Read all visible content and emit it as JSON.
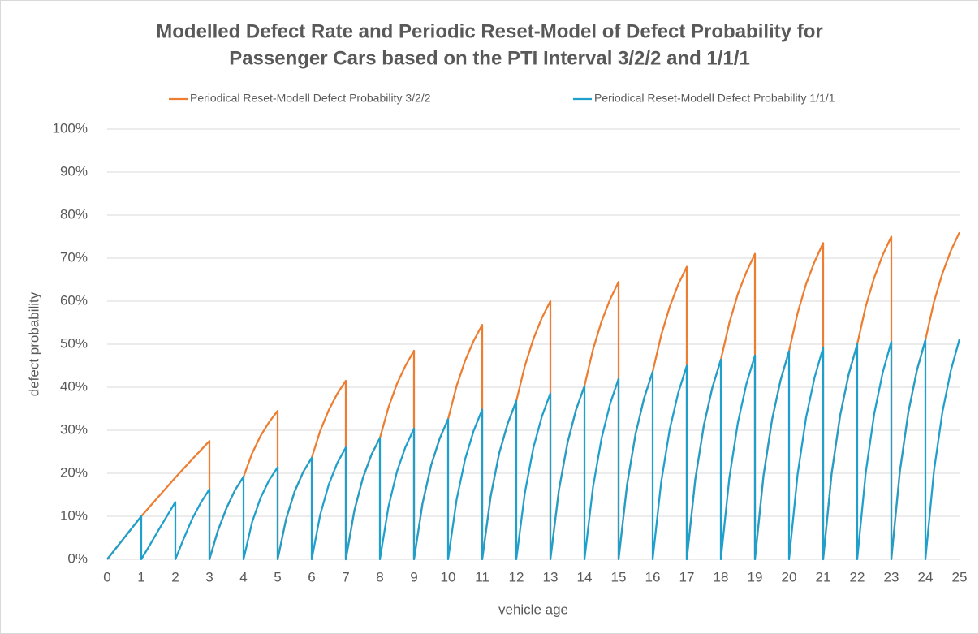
{
  "chart_data": {
    "type": "line",
    "title": [
      "Modelled Defect Rate and Periodic Reset-Model of Defect Probability for",
      "Passenger Cars based on the PTI Interval 3/2/2 and 1/1/1"
    ],
    "x_label": "vehicle age",
    "y_label": "defect probability",
    "xlim": [
      0,
      25
    ],
    "ylim": [
      0,
      100
    ],
    "xticks": [
      0,
      1,
      2,
      3,
      4,
      5,
      6,
      7,
      8,
      9,
      10,
      11,
      12,
      13,
      14,
      15,
      16,
      17,
      18,
      19,
      20,
      21,
      22,
      23,
      24,
      25
    ],
    "yticks": [
      {
        "value": 0,
        "label": "0%"
      },
      {
        "value": 10,
        "label": "10%"
      },
      {
        "value": 20,
        "label": "20%"
      },
      {
        "value": 30,
        "label": "30%"
      },
      {
        "value": 40,
        "label": "40%"
      },
      {
        "value": 50,
        "label": "50%"
      },
      {
        "value": 60,
        "label": "60%"
      },
      {
        "value": 70,
        "label": "70%"
      },
      {
        "value": 80,
        "label": "80%"
      },
      {
        "value": 90,
        "label": "90%"
      },
      {
        "value": 100,
        "label": "100%"
      }
    ],
    "grid": true,
    "legend": "top",
    "series": [
      {
        "name": "Periodical Reset-Modell Defect Probability 3/2/2",
        "color": "#ED7D31",
        "x": [
          0,
          0.5,
          1,
          1.5,
          2,
          2.5,
          3,
          3,
          3.25,
          3.5,
          3.75,
          4,
          4.25,
          4.5,
          4.75,
          5,
          5,
          5.25,
          5.5,
          5.75,
          6,
          6.25,
          6.5,
          6.75,
          7,
          7,
          7.25,
          7.5,
          7.75,
          8,
          8.25,
          8.5,
          8.75,
          9,
          9,
          9.25,
          9.5,
          9.75,
          10,
          10.25,
          10.5,
          10.75,
          11,
          11,
          11.25,
          11.5,
          11.75,
          12,
          12.25,
          12.5,
          12.75,
          13,
          13,
          13.25,
          13.5,
          13.75,
          14,
          14.25,
          14.5,
          14.75,
          15,
          15,
          15.25,
          15.5,
          15.75,
          16,
          16.25,
          16.5,
          16.75,
          17,
          17,
          17.25,
          17.5,
          17.75,
          18,
          18.25,
          18.5,
          18.75,
          19,
          19,
          19.25,
          19.5,
          19.75,
          20,
          20.25,
          20.5,
          20.75,
          21,
          21,
          21.25,
          21.5,
          21.75,
          22,
          22.25,
          22.5,
          22.75,
          23,
          23,
          23.25,
          23.5,
          23.75,
          24,
          24.25,
          24.5,
          24.75,
          25
        ],
        "values": [
          0,
          5,
          10,
          14.5,
          19,
          23.3,
          27.5,
          0,
          6.7,
          11.9,
          16.1,
          19.2,
          24.6,
          28.7,
          31.9,
          34.5,
          0,
          9.4,
          15.8,
          20.3,
          23.6,
          29.9,
          34.7,
          38.5,
          41.5,
          0,
          11.3,
          18.9,
          24.3,
          28.2,
          35.3,
          40.8,
          45.0,
          48.5,
          0,
          13,
          21.8,
          28,
          32.6,
          40.3,
          46.2,
          50.8,
          54.5,
          0,
          14.7,
          24.7,
          31.6,
          36.8,
          44.9,
          51.2,
          56.1,
          60,
          0,
          16.1,
          27,
          34.7,
          40.3,
          48.8,
          55.3,
          60.4,
          64.5,
          0,
          17.4,
          29.2,
          37.5,
          43.6,
          52.1,
          58.7,
          63.9,
          68,
          0,
          18.6,
          31.1,
          39.9,
          46.4,
          55,
          61.7,
          66.8,
          71,
          0,
          19.4,
          32.4,
          41.6,
          48.4,
          57.2,
          64,
          69.2,
          73.5,
          0,
          20,
          33.5,
          43,
          50,
          58.8,
          65.5,
          70.8,
          75,
          0,
          20.4,
          34.2,
          43.9,
          51,
          59.8,
          66.5,
          71.8,
          76
        ]
      },
      {
        "name": "Periodical Reset-Modell Defect Probability 1/1/1",
        "color": "#1F9FCB",
        "x": [
          0,
          0.25,
          0.5,
          0.75,
          1,
          1,
          1.25,
          1.5,
          1.75,
          2,
          2,
          2.25,
          2.5,
          2.75,
          3,
          3,
          3.25,
          3.5,
          3.75,
          4,
          4,
          4.25,
          4.5,
          4.75,
          5,
          5,
          5.25,
          5.5,
          5.75,
          6,
          6,
          6.25,
          6.5,
          6.75,
          7,
          7,
          7.25,
          7.5,
          7.75,
          8,
          8,
          8.25,
          8.5,
          8.75,
          9,
          9,
          9.25,
          9.5,
          9.75,
          10,
          10,
          10.25,
          10.5,
          10.75,
          11,
          11,
          11.25,
          11.5,
          11.75,
          12,
          12,
          12.25,
          12.5,
          12.75,
          13,
          13,
          13.25,
          13.5,
          13.75,
          14,
          14,
          14.25,
          14.5,
          14.75,
          15,
          15,
          15.25,
          15.5,
          15.75,
          16,
          16,
          16.25,
          16.5,
          16.75,
          17,
          17,
          17.25,
          17.5,
          17.75,
          18,
          18,
          18.25,
          18.5,
          18.75,
          19,
          19,
          19.25,
          19.5,
          19.75,
          20,
          20,
          20.25,
          20.5,
          20.75,
          21,
          21,
          21.25,
          21.5,
          21.75,
          22,
          22,
          22.25,
          22.5,
          22.75,
          23,
          23,
          23.25,
          23.5,
          23.75,
          24,
          24,
          24.25,
          24.5,
          24.75,
          25
        ],
        "values": [
          0,
          2.5,
          5,
          7.5,
          10,
          0,
          3.3,
          6.7,
          10,
          13.3,
          0,
          4.9,
          9.5,
          13.2,
          16.3,
          0,
          6.7,
          11.9,
          16.1,
          19.2,
          0,
          8.6,
          14.3,
          18.4,
          21.4,
          0,
          9.4,
          15.8,
          20.3,
          23.6,
          0,
          10.4,
          17.4,
          22.4,
          26,
          0,
          11.3,
          18.9,
          24.3,
          28.2,
          0,
          12.2,
          20.4,
          26.1,
          30.4,
          0,
          13,
          21.8,
          28,
          32.6,
          0,
          13.9,
          23.3,
          29.9,
          34.8,
          0,
          14.7,
          24.7,
          31.6,
          36.8,
          0,
          15.4,
          25.9,
          33.2,
          38.6,
          0,
          16.1,
          27,
          34.7,
          40.3,
          0,
          16.8,
          28.1,
          36.1,
          42,
          0,
          17.4,
          29.2,
          37.5,
          43.6,
          0,
          18,
          30.2,
          38.7,
          45,
          0,
          18.6,
          31.1,
          39.9,
          46.4,
          0,
          19,
          31.8,
          40.8,
          47.4,
          0,
          19.4,
          32.4,
          41.6,
          48.4,
          0,
          19.7,
          33,
          42.3,
          49.2,
          0,
          20,
          33.5,
          43,
          50,
          0,
          20.2,
          33.9,
          43.5,
          50.6,
          0,
          20.4,
          34.2,
          43.9,
          51,
          0,
          20.5,
          34.3,
          44,
          51.2
        ]
      }
    ]
  }
}
